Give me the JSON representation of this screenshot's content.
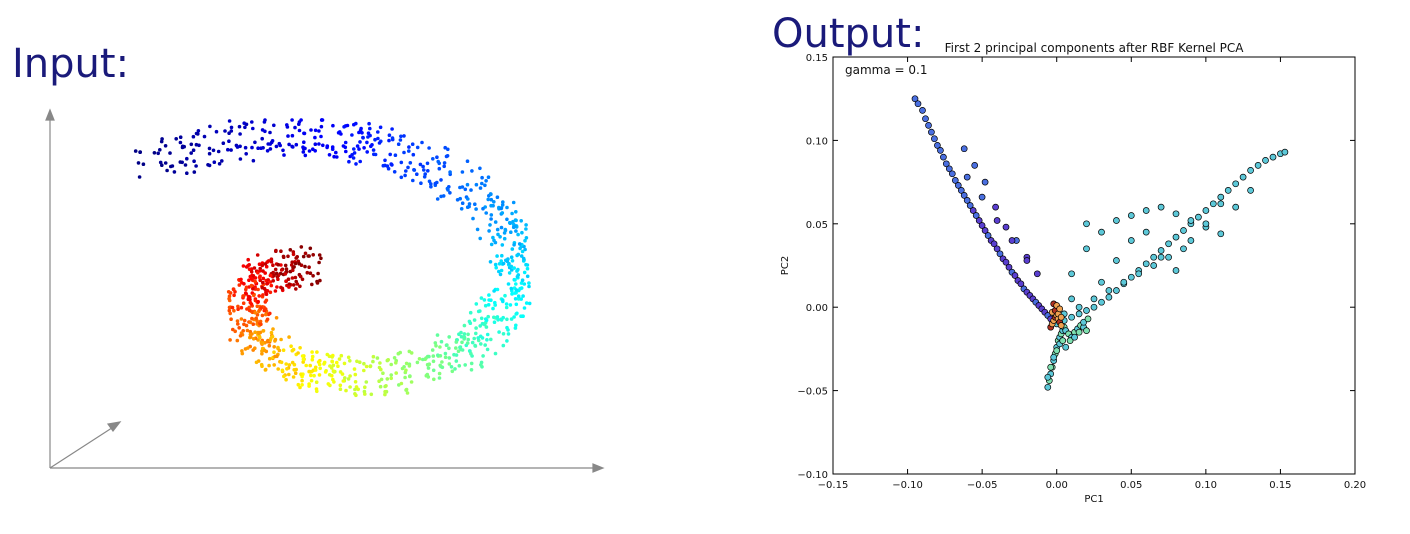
{
  "input_panel": {
    "heading": "Input:"
  },
  "output_panel": {
    "heading": "Output:"
  },
  "chart_data": [
    {
      "type": "scatter",
      "title": "",
      "xlabel": "",
      "ylabel": "",
      "description_visible": "3D swiss-roll point cloud, no ticks or labels",
      "colormap": "jet",
      "seed": 7,
      "point_count": 1100
    },
    {
      "type": "scatter",
      "title": "First 2 principal components after RBF Kernel PCA",
      "xlabel": "PC1",
      "ylabel": "PC2",
      "annotation": "gamma = 0.1",
      "xlim": [
        -0.15,
        0.2
      ],
      "ylim": [
        -0.1,
        0.15
      ],
      "xticks": [
        -0.15,
        -0.1,
        -0.05,
        0.0,
        0.05,
        0.1,
        0.15,
        0.2
      ],
      "yticks": [
        -0.1,
        -0.05,
        0.0,
        0.05,
        0.1,
        0.15
      ],
      "xtick_labels": [
        "−0.15",
        "−0.10",
        "−0.05",
        "0.00",
        "0.05",
        "0.10",
        "0.15",
        "0.20"
      ],
      "ytick_labels": [
        "−0.10",
        "−0.05",
        "0.00",
        "0.05",
        "0.10",
        "0.15"
      ],
      "grid": false,
      "colors": {
        "purple": "#5a3fd0",
        "blue": "#4a6fe0",
        "cyan": "#5cc8d8",
        "green": "#7ee0b0",
        "orange": "#f0a050",
        "red": "#b03020"
      },
      "series": [
        {
          "name": "",
          "color_group": "blue-purple",
          "x": [
            -0.095,
            -0.093,
            -0.09,
            -0.088,
            -0.086,
            -0.084,
            -0.082,
            -0.08,
            -0.078,
            -0.076,
            -0.074,
            -0.072,
            -0.07,
            -0.068,
            -0.066,
            -0.064,
            -0.062,
            -0.06,
            -0.058,
            -0.056,
            -0.054,
            -0.052,
            -0.05,
            -0.048,
            -0.046,
            -0.044,
            -0.042,
            -0.04,
            -0.038,
            -0.036,
            -0.034,
            -0.032,
            -0.03,
            -0.028,
            -0.026,
            -0.024,
            -0.022,
            -0.02,
            -0.018,
            -0.016,
            -0.014,
            -0.012,
            -0.01,
            -0.008,
            -0.006,
            -0.004,
            -0.002,
            -0.062,
            -0.055,
            -0.048,
            -0.041,
            -0.034,
            -0.027,
            -0.02,
            -0.013,
            -0.06,
            -0.05,
            -0.04,
            -0.03,
            -0.02
          ],
          "y": [
            0.125,
            0.122,
            0.118,
            0.113,
            0.109,
            0.105,
            0.101,
            0.097,
            0.094,
            0.09,
            0.086,
            0.083,
            0.08,
            0.076,
            0.073,
            0.07,
            0.067,
            0.064,
            0.061,
            0.058,
            0.055,
            0.052,
            0.049,
            0.046,
            0.043,
            0.04,
            0.038,
            0.035,
            0.032,
            0.029,
            0.027,
            0.024,
            0.021,
            0.019,
            0.016,
            0.014,
            0.011,
            0.009,
            0.007,
            0.005,
            0.003,
            0.001,
            -0.001,
            -0.003,
            -0.005,
            -0.007,
            -0.009,
            0.095,
            0.085,
            0.075,
            0.06,
            0.048,
            0.04,
            0.03,
            0.02,
            0.078,
            0.066,
            0.052,
            0.04,
            0.028
          ]
        },
        {
          "name": "",
          "color_group": "cyan-arm",
          "x": [
            0.0,
            0.005,
            0.01,
            0.015,
            0.02,
            0.025,
            0.03,
            0.035,
            0.04,
            0.045,
            0.05,
            0.055,
            0.06,
            0.065,
            0.07,
            0.075,
            0.08,
            0.085,
            0.09,
            0.095,
            0.1,
            0.105,
            0.11,
            0.115,
            0.12,
            0.125,
            0.13,
            0.135,
            0.14,
            0.145,
            0.15,
            0.153,
            0.01,
            0.02,
            0.03,
            0.04,
            0.05,
            0.06,
            0.07,
            0.08,
            0.09,
            0.1,
            0.11,
            0.12,
            0.005,
            0.015,
            0.025,
            0.035,
            0.045,
            0.055,
            0.065,
            0.075,
            0.085,
            0.01,
            0.03,
            0.05,
            0.07,
            0.09,
            0.11,
            0.13,
            0.02,
            0.04,
            0.06,
            0.08,
            0.1
          ],
          "y": [
            -0.01,
            -0.008,
            -0.006,
            -0.004,
            -0.002,
            0.0,
            0.003,
            0.006,
            0.01,
            0.014,
            0.018,
            0.022,
            0.026,
            0.03,
            0.034,
            0.038,
            0.042,
            0.046,
            0.05,
            0.054,
            0.058,
            0.062,
            0.066,
            0.07,
            0.074,
            0.078,
            0.082,
            0.085,
            0.088,
            0.09,
            0.092,
            0.093,
            0.02,
            0.035,
            0.045,
            0.052,
            0.055,
            0.058,
            0.06,
            0.056,
            0.052,
            0.048,
            0.044,
            0.06,
            -0.004,
            0.0,
            0.005,
            0.01,
            0.015,
            0.02,
            0.025,
            0.03,
            0.035,
            0.005,
            0.015,
            0.04,
            0.03,
            0.04,
            0.062,
            0.07,
            0.05,
            0.028,
            0.045,
            0.022,
            0.05
          ]
        },
        {
          "name": "",
          "color_group": "green-tail",
          "x": [
            -0.006,
            -0.005,
            -0.004,
            -0.003,
            -0.002,
            -0.001,
            0.0,
            0.001,
            0.002,
            0.003,
            0.004,
            0.005,
            0.006,
            0.008,
            0.01,
            0.012,
            0.014,
            0.016,
            0.018,
            0.02,
            -0.006,
            -0.004,
            -0.002,
            0.0,
            0.002,
            0.004,
            0.006,
            0.009,
            0.012,
            0.015,
            0.018,
            0.021
          ],
          "y": [
            -0.048,
            -0.044,
            -0.04,
            -0.036,
            -0.032,
            -0.028,
            -0.024,
            -0.02,
            -0.018,
            -0.016,
            -0.014,
            -0.012,
            -0.014,
            -0.016,
            -0.018,
            -0.015,
            -0.013,
            -0.011,
            -0.012,
            -0.014,
            -0.042,
            -0.036,
            -0.03,
            -0.026,
            -0.022,
            -0.02,
            -0.024,
            -0.02,
            -0.018,
            -0.015,
            -0.009,
            -0.007
          ]
        },
        {
          "name": "",
          "color_group": "orange-core",
          "x": [
            -0.004,
            -0.003,
            -0.002,
            -0.001,
            0.0,
            0.001,
            0.002,
            0.003,
            -0.003,
            -0.001,
            0.001,
            0.003,
            -0.002,
            0.0,
            0.002
          ],
          "y": [
            -0.012,
            -0.01,
            -0.008,
            -0.006,
            -0.005,
            -0.007,
            -0.009,
            -0.011,
            -0.003,
            -0.002,
            -0.004,
            -0.006,
            0.002,
            0.001,
            -0.001
          ]
        }
      ]
    }
  ]
}
